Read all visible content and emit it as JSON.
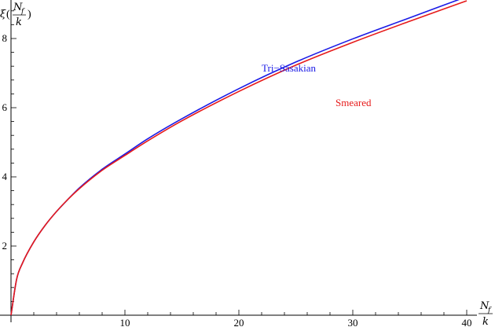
{
  "chart_data": {
    "type": "line",
    "title": "",
    "xlabel": {
      "var": "N",
      "sub": "f",
      "den": "k"
    },
    "ylabel": {
      "fn": "ξ",
      "open": "(",
      "var": "N",
      "sub": "f",
      "den": "k",
      "close": ")"
    },
    "xlim": [
      0,
      40
    ],
    "ylim": [
      0,
      9.0
    ],
    "grid": false,
    "x_ticks": [
      10,
      20,
      30,
      40
    ],
    "x_tick_labels": [
      "10",
      "20",
      "30",
      "40"
    ],
    "y_ticks": [
      2,
      4,
      6,
      8
    ],
    "y_tick_labels": [
      "2",
      "4",
      "6",
      "8"
    ],
    "series": [
      {
        "name": "Tri−Sasakian",
        "color": "#1a1ae6",
        "x": [
          0,
          0.5,
          1,
          2,
          3,
          4,
          5,
          6,
          8,
          10,
          12,
          15,
          20,
          25,
          30,
          35,
          40
        ],
        "y": [
          0,
          1.05,
          1.5,
          2.12,
          2.6,
          3.0,
          3.35,
          3.68,
          4.22,
          4.66,
          5.1,
          5.68,
          6.55,
          7.32,
          7.99,
          8.6,
          9.21
        ]
      },
      {
        "name": "Smeared",
        "color": "#e61a1a",
        "x": [
          0,
          0.5,
          1,
          2,
          3,
          4,
          5,
          6,
          8,
          10,
          12,
          15,
          20,
          25,
          30,
          35,
          40
        ],
        "y": [
          0,
          1.05,
          1.5,
          2.12,
          2.6,
          3.0,
          3.35,
          3.66,
          4.19,
          4.62,
          5.04,
          5.62,
          6.47,
          7.23,
          7.89,
          8.5,
          9.09
        ]
      }
    ]
  }
}
